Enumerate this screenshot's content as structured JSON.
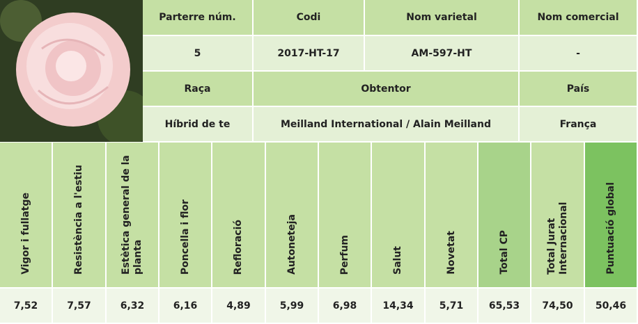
{
  "info": {
    "headers1": [
      "Parterre núm.",
      "Codi",
      "Nom varietal",
      "Nom comercial"
    ],
    "values1": [
      "5",
      "2017-HT-17",
      "AM-597-HT",
      "-"
    ],
    "headers2": [
      "Raça",
      "Obtentor",
      "País"
    ],
    "values2": [
      "Híbrid de te",
      "Meilland International / Alain Meilland",
      "França"
    ]
  },
  "scores": {
    "columns": [
      "Vigor i fullatge",
      "Resistència a l'estiu",
      "Estètica general de la planta",
      "Poncella i flor",
      "Refloració",
      "Autoneteja",
      "Perfum",
      "Salut",
      "Novetat",
      "Total CP",
      "Total Jurat Internacional",
      "Puntuació global"
    ],
    "values": [
      "7,52",
      "7,57",
      "6,32",
      "6,16",
      "4,89",
      "5,99",
      "6,98",
      "14,34",
      "5,71",
      "65,53",
      "74,50",
      "50,46"
    ]
  }
}
